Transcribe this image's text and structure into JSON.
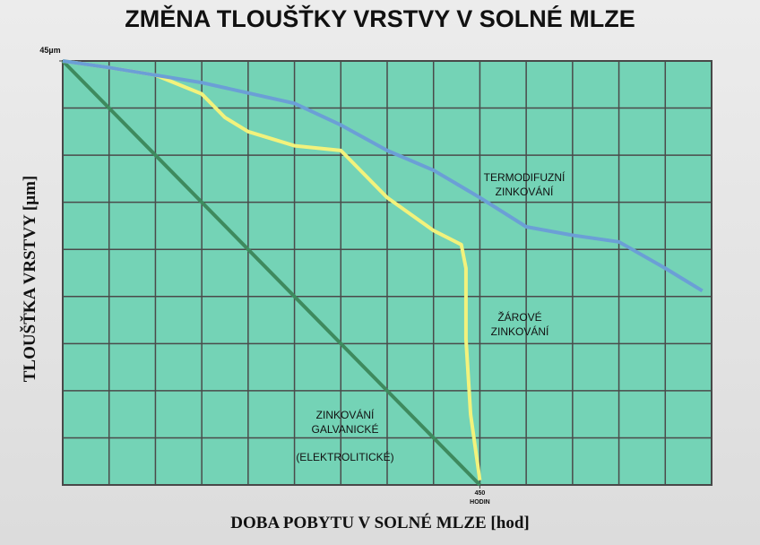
{
  "chart_data": {
    "type": "line",
    "title": "ZMĚNA TLOUŠŤKY VRSTVY V SOLNÉ MLZE",
    "x_label": "DOBA POBYTU V SOLNÉ MLZE [hod]",
    "y_label": "TLOUŠŤKA VRSTVY [µm]",
    "xlim": [
      0,
      700
    ],
    "ylim": [
      0,
      45
    ],
    "xticks": [
      {
        "value": 450,
        "label": "450 HODIN"
      }
    ],
    "yticks": [
      {
        "value": 45,
        "label": "45µm"
      }
    ],
    "grid": true,
    "xgrid": [
      0,
      50,
      100,
      150,
      200,
      250,
      300,
      350,
      400,
      450,
      500,
      550,
      600,
      650,
      700
    ],
    "ygrid": [
      0,
      5,
      10,
      15,
      20,
      25,
      30,
      35,
      40,
      45
    ],
    "plot_color": "#74d3b6",
    "series": [
      {
        "name": "ZINKOVÁNÍ GALVANICKÉ",
        "color": "#3e8a5e",
        "x": [
          0,
          450
        ],
        "values": [
          45,
          0
        ]
      },
      {
        "name": "ŽÁROVÉ ZINKOVÁNÍ",
        "color": "#f2f27c",
        "x": [
          0,
          50,
          100,
          150,
          175,
          200,
          250,
          300,
          350,
          400,
          430,
          435,
          435,
          440,
          450
        ],
        "values": [
          45,
          44.3,
          43.5,
          41.5,
          39,
          37.5,
          36,
          35.5,
          30.5,
          27,
          25.5,
          23,
          15.5,
          7.5,
          0.5
        ]
      },
      {
        "name": "TERMODIFUZNÍ ZINKOVÁNÍ",
        "color": "#6b9fd6",
        "x": [
          0,
          50,
          150,
          250,
          300,
          350,
          400,
          450,
          500,
          550,
          600,
          650,
          690
        ],
        "values": [
          45,
          44.3,
          42.7,
          40.5,
          38.2,
          35.5,
          33.4,
          30.5,
          27.4,
          26.5,
          25.8,
          23,
          20.6
        ]
      }
    ],
    "annotations": [
      "(ELEKTROLITICKÉ)"
    ]
  }
}
